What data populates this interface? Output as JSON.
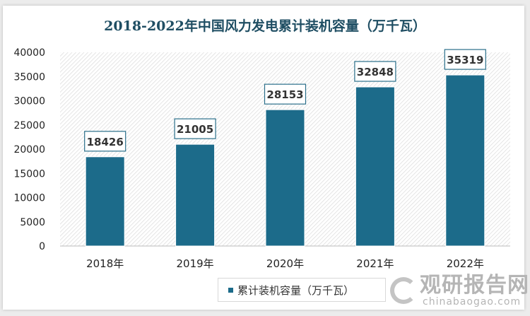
{
  "chart_data": {
    "type": "bar",
    "title": "2018-2022年中国风力发电累计装机容量（万千瓦）",
    "categories": [
      "2018年",
      "2019年",
      "2020年",
      "2021年",
      "2022年"
    ],
    "series": [
      {
        "name": "累计装机容量（万千瓦）",
        "values": [
          18426,
          21005,
          28153,
          32848,
          35319
        ]
      }
    ],
    "ylim": [
      0,
      40000
    ],
    "yticks": [
      0,
      5000,
      10000,
      15000,
      20000,
      25000,
      30000,
      35000,
      40000
    ],
    "grid": false,
    "legend": "bottom",
    "bar_color": "#1c6b8a",
    "data_labels": true
  },
  "watermark": {
    "cn": "观研报告网",
    "en": "chinabaogao.com"
  }
}
